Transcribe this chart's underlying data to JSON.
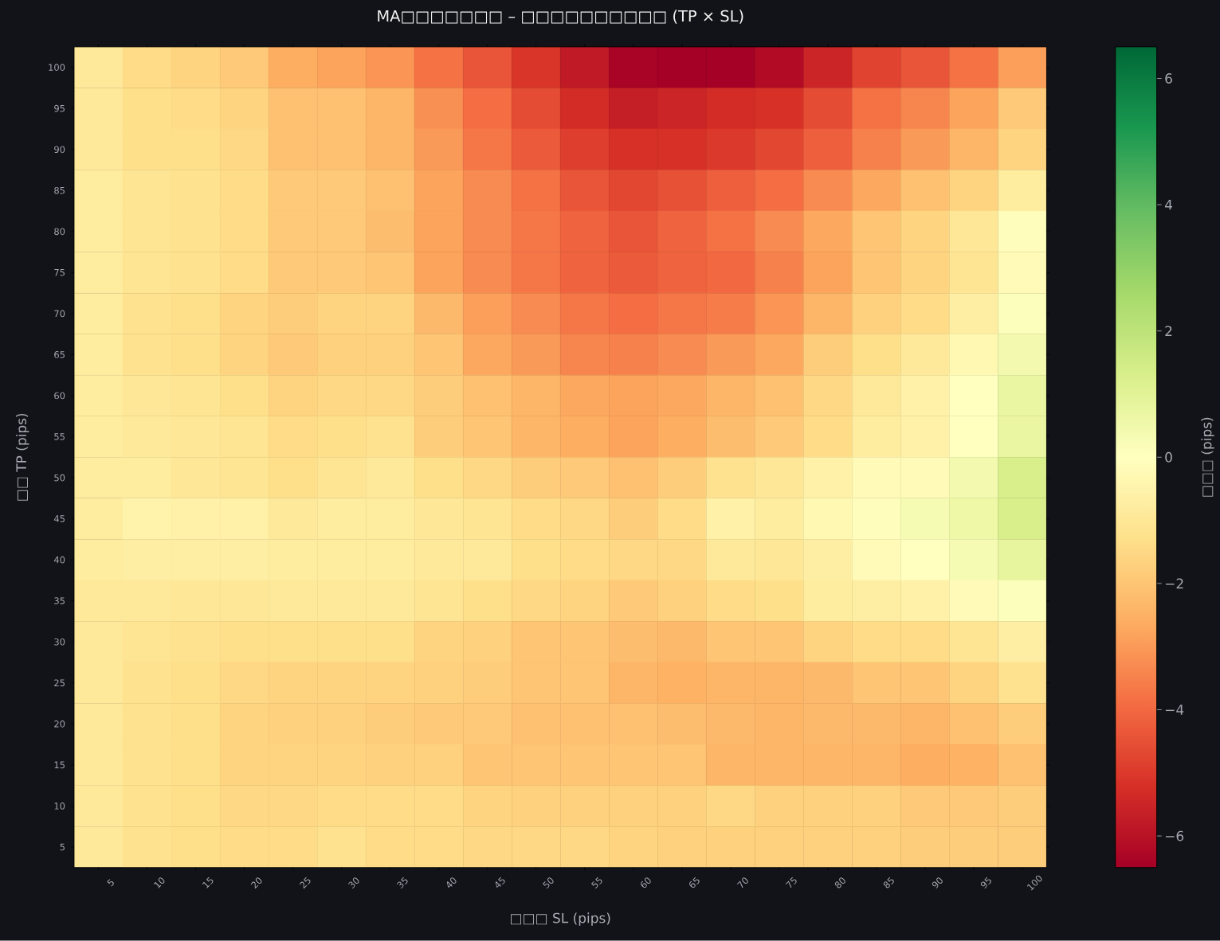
{
  "chart_data": {
    "type": "heatmap",
    "title": "MA□□□□□□□ – □□□□□□□□□□ (TP × SL)",
    "xlabel": "□□□ SL (pips)",
    "ylabel": "□□ TP (pips)",
    "clabel": "□□□ (pips)",
    "categories": [
      "5",
      "10",
      "15",
      "20",
      "25",
      "30",
      "35",
      "40",
      "45",
      "50",
      "55",
      "60",
      "65",
      "70",
      "75",
      "80",
      "85",
      "90",
      "95",
      "100"
    ],
    "y_categories": [
      "100",
      "95",
      "90",
      "85",
      "80",
      "75",
      "70",
      "65",
      "60",
      "55",
      "50",
      "45",
      "40",
      "35",
      "30",
      "25",
      "20",
      "15",
      "10",
      "5"
    ],
    "cells": [
      [
        -0.9,
        -1.4,
        -1.6,
        -1.9,
        -2.6,
        -2.8,
        -3.1,
        -3.8,
        -4.4,
        -5.1,
        -5.8,
        -6.4,
        -6.5,
        -6.5,
        -6.2,
        -5.5,
        -4.8,
        -4.4,
        -3.8,
        -2.9
      ],
      [
        -0.9,
        -1.3,
        -1.4,
        -1.6,
        -2.1,
        -2.1,
        -2.4,
        -3.2,
        -3.9,
        -4.6,
        -5.3,
        -5.7,
        -5.5,
        -5.3,
        -5.2,
        -4.6,
        -3.8,
        -3.4,
        -2.8,
        -1.9
      ],
      [
        -0.9,
        -1.3,
        -1.3,
        -1.5,
        -2.1,
        -2.1,
        -2.4,
        -3.0,
        -3.7,
        -4.3,
        -4.9,
        -5.2,
        -5.2,
        -5.0,
        -4.7,
        -4.2,
        -3.5,
        -3.0,
        -2.4,
        -1.6
      ],
      [
        -0.8,
        -1.1,
        -1.2,
        -1.4,
        -1.9,
        -1.9,
        -2.1,
        -2.8,
        -3.3,
        -3.8,
        -4.4,
        -4.7,
        -4.5,
        -4.2,
        -3.9,
        -3.3,
        -2.7,
        -2.1,
        -1.6,
        -0.8
      ],
      [
        -0.8,
        -1.1,
        -1.2,
        -1.4,
        -1.9,
        -1.9,
        -2.2,
        -2.8,
        -3.3,
        -3.7,
        -4.1,
        -4.4,
        -4.1,
        -3.8,
        -3.3,
        -2.7,
        -2.0,
        -1.6,
        -1.0,
        -0.1
      ],
      [
        -0.8,
        -1.1,
        -1.2,
        -1.4,
        -1.9,
        -1.9,
        -2.0,
        -2.8,
        -3.3,
        -3.7,
        -4.1,
        -4.3,
        -4.1,
        -4.0,
        -3.5,
        -2.8,
        -2.0,
        -1.6,
        -1.1,
        -0.2
      ],
      [
        -0.8,
        -1.2,
        -1.3,
        -1.6,
        -1.8,
        -1.6,
        -1.6,
        -2.3,
        -2.9,
        -3.3,
        -3.7,
        -3.9,
        -3.7,
        -3.6,
        -3.1,
        -2.4,
        -1.7,
        -1.4,
        -0.7,
        0.1
      ],
      [
        -0.8,
        -1.2,
        -1.3,
        -1.6,
        -1.9,
        -1.7,
        -1.7,
        -2.0,
        -2.7,
        -3.0,
        -3.4,
        -3.5,
        -3.3,
        -3.0,
        -2.7,
        -1.8,
        -1.3,
        -0.9,
        -0.3,
        0.4
      ],
      [
        -0.8,
        -1.0,
        -1.1,
        -1.3,
        -1.6,
        -1.5,
        -1.5,
        -1.8,
        -2.1,
        -2.4,
        -2.7,
        -2.8,
        -2.7,
        -2.4,
        -2.1,
        -1.5,
        -0.9,
        -0.6,
        0.0,
        0.7
      ],
      [
        -0.8,
        -0.9,
        -1.0,
        -1.1,
        -1.4,
        -1.3,
        -1.2,
        -1.8,
        -2.0,
        -2.4,
        -2.6,
        -2.8,
        -2.6,
        -2.2,
        -1.9,
        -1.4,
        -0.8,
        -0.6,
        0.0,
        0.7
      ],
      [
        -0.8,
        -0.8,
        -1.0,
        -1.1,
        -1.3,
        -1.1,
        -0.9,
        -1.3,
        -1.5,
        -1.8,
        -1.9,
        -2.1,
        -1.8,
        -1.2,
        -1.0,
        -0.6,
        -0.2,
        -0.2,
        0.4,
        1.3
      ],
      [
        -0.8,
        -0.5,
        -0.6,
        -0.6,
        -0.9,
        -0.8,
        -0.8,
        -1.0,
        -1.1,
        -1.4,
        -1.5,
        -1.8,
        -1.4,
        -0.6,
        -0.8,
        -0.3,
        -0.1,
        0.3,
        0.6,
        1.3
      ],
      [
        -0.8,
        -0.7,
        -0.7,
        -0.7,
        -0.8,
        -0.8,
        -0.8,
        -0.9,
        -0.9,
        -1.3,
        -1.4,
        -1.5,
        -1.5,
        -0.9,
        -1.0,
        -0.7,
        -0.2,
        0.0,
        0.3,
        0.8
      ],
      [
        -0.9,
        -0.9,
        -1.0,
        -1.0,
        -0.9,
        -0.9,
        -0.9,
        -1.1,
        -1.3,
        -1.5,
        -1.6,
        -1.9,
        -1.7,
        -1.4,
        -1.3,
        -0.8,
        -0.7,
        -0.6,
        -0.2,
        0.1
      ],
      [
        -0.9,
        -1.1,
        -1.2,
        -1.3,
        -1.3,
        -1.3,
        -1.3,
        -1.6,
        -1.7,
        -2.0,
        -2.0,
        -2.2,
        -2.3,
        -2.0,
        -2.0,
        -1.6,
        -1.4,
        -1.4,
        -1.1,
        -0.7
      ],
      [
        -0.9,
        -1.2,
        -1.3,
        -1.5,
        -1.6,
        -1.6,
        -1.6,
        -1.7,
        -1.8,
        -2.0,
        -2.0,
        -2.4,
        -2.5,
        -2.4,
        -2.4,
        -2.3,
        -2.0,
        -2.0,
        -1.6,
        -1.2
      ],
      [
        -0.9,
        -1.2,
        -1.3,
        -1.6,
        -1.7,
        -1.7,
        -1.8,
        -1.9,
        -1.9,
        -2.1,
        -2.1,
        -2.1,
        -2.2,
        -2.3,
        -2.4,
        -2.3,
        -2.3,
        -2.4,
        -2.1,
        -1.8
      ],
      [
        -0.9,
        -1.2,
        -1.3,
        -1.6,
        -1.6,
        -1.6,
        -1.7,
        -1.7,
        -2.0,
        -2.0,
        -2.0,
        -2.0,
        -2.0,
        -2.4,
        -2.4,
        -2.4,
        -2.4,
        -2.6,
        -2.5,
        -2.1
      ],
      [
        -0.9,
        -1.2,
        -1.3,
        -1.5,
        -1.5,
        -1.4,
        -1.4,
        -1.4,
        -1.6,
        -1.7,
        -1.7,
        -1.7,
        -1.7,
        -1.5,
        -1.7,
        -1.7,
        -1.7,
        -1.9,
        -1.9,
        -1.8
      ],
      [
        -0.9,
        -1.2,
        -1.3,
        -1.4,
        -1.4,
        -1.2,
        -1.4,
        -1.4,
        -1.5,
        -1.5,
        -1.5,
        -1.6,
        -1.7,
        -1.7,
        -1.7,
        -1.7,
        -1.7,
        -1.8,
        -1.8,
        -1.8
      ]
    ],
    "clim": [
      -6.5,
      6.5
    ],
    "cticks": [
      {
        "value": -6,
        "label": "−6"
      },
      {
        "value": -4,
        "label": "−4"
      },
      {
        "value": -2,
        "label": "−2"
      },
      0,
      2,
      4,
      6
    ]
  }
}
